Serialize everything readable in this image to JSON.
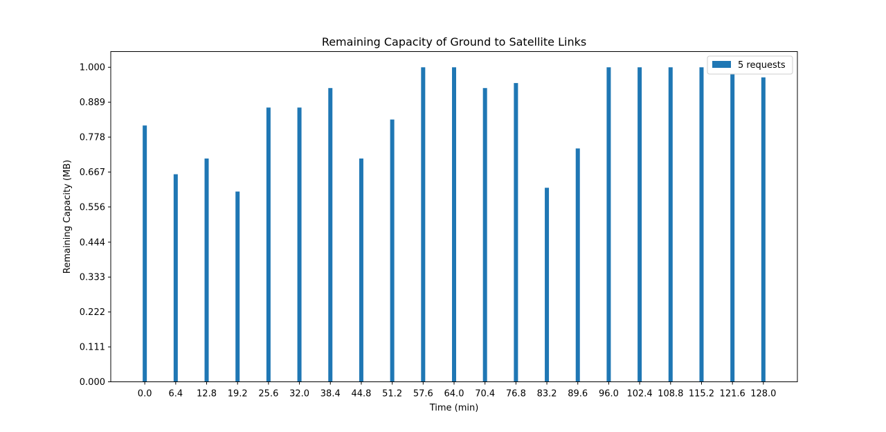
{
  "chart_data": {
    "type": "bar",
    "title": "Remaining Capacity of Ground to Satellite Links",
    "xlabel": "Time (min)",
    "ylabel": "Remaining Capacity (MB)",
    "categories": [
      "0.0",
      "6.4",
      "12.8",
      "19.2",
      "25.6",
      "32.0",
      "38.4",
      "44.8",
      "51.2",
      "57.6",
      "64.0",
      "70.4",
      "76.8",
      "83.2",
      "89.6",
      "96.0",
      "102.4",
      "108.8",
      "115.2",
      "121.6",
      "128.0"
    ],
    "x": [
      0.0,
      6.4,
      12.8,
      19.2,
      25.6,
      32.0,
      38.4,
      44.8,
      51.2,
      57.6,
      64.0,
      70.4,
      76.8,
      83.2,
      89.6,
      96.0,
      102.4,
      108.8,
      115.2,
      121.6,
      128.0
    ],
    "series": [
      {
        "name": "5 requests",
        "color": "#1f77b4",
        "values": [
          0.815,
          0.66,
          0.71,
          0.605,
          0.872,
          0.872,
          0.934,
          0.71,
          0.834,
          1.0,
          1.0,
          0.934,
          0.95,
          0.617,
          0.742,
          1.0,
          1.0,
          1.0,
          1.0,
          0.98,
          0.968
        ]
      }
    ],
    "yticks": [
      "0.000",
      "0.111",
      "0.222",
      "0.333",
      "0.444",
      "0.556",
      "0.667",
      "0.778",
      "0.889",
      "1.000"
    ],
    "ylim": [
      0,
      1.05
    ],
    "xlim": [
      -7.04,
      135.04
    ],
    "grid": false,
    "legend_position": "top-right"
  }
}
